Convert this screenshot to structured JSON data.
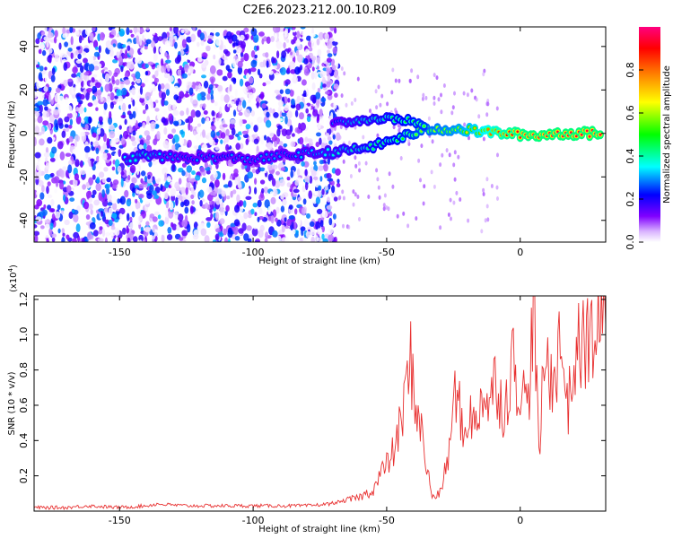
{
  "title": "C2E6.2023.212.00.10.R09",
  "chart_data": [
    {
      "type": "heatmap",
      "xlabel": "Height of straight line (km)",
      "ylabel": "Frequency (Hz)",
      "xlim": [
        -182,
        32
      ],
      "ylim": [
        -50,
        49
      ],
      "x_ticks": [
        "-150",
        "-100",
        "-50",
        "0"
      ],
      "x_tick_values": [
        -150,
        -100,
        -50,
        0
      ],
      "y_ticks": [
        "-40",
        "-20",
        "0",
        "20",
        "40"
      ],
      "y_tick_values": [
        -40,
        -20,
        0,
        20,
        40
      ],
      "colorbar": {
        "label": "Normalized spectral amplitude",
        "range": [
          0,
          1
        ],
        "ticks": [
          "0.0",
          "0.2",
          "0.4",
          "0.6",
          "0.8"
        ],
        "tick_values": [
          0.0,
          0.2,
          0.4,
          0.6,
          0.8
        ],
        "colors": [
          "#ffffff",
          "#d9b3ff",
          "#8000ff",
          "#0000ff",
          "#00ffff",
          "#00ff00",
          "#ffff00",
          "#ff8000",
          "#ff0000",
          "#ff0080"
        ]
      },
      "noise_region_x": [
        -182,
        -68
      ],
      "signal_track": [
        {
          "x": -148,
          "y": -12,
          "amp": 0.35
        },
        {
          "x": -140,
          "y": -10,
          "amp": 0.4
        },
        {
          "x": -132,
          "y": -11,
          "amp": 0.3
        },
        {
          "x": -120,
          "y": -11,
          "amp": 0.3
        },
        {
          "x": -110,
          "y": -11,
          "amp": 0.3
        },
        {
          "x": -100,
          "y": -12,
          "amp": 0.3
        },
        {
          "x": -88,
          "y": -10,
          "amp": 0.3
        },
        {
          "x": -75,
          "y": -9,
          "amp": 0.35
        },
        {
          "x": -65,
          "y": -8,
          "amp": 0.4
        },
        {
          "x": -55,
          "y": -6,
          "amp": 0.45
        },
        {
          "x": -45,
          "y": -2,
          "amp": 0.5
        },
        {
          "x": -35,
          "y": 2,
          "amp": 0.6
        },
        {
          "x": -25,
          "y": 2,
          "amp": 0.65
        },
        {
          "x": -15,
          "y": 1,
          "amp": 0.75
        },
        {
          "x": -5,
          "y": 0,
          "amp": 0.9
        },
        {
          "x": 5,
          "y": -1,
          "amp": 0.95
        },
        {
          "x": 15,
          "y": 0,
          "amp": 0.95
        },
        {
          "x": 25,
          "y": 0,
          "amp": 0.95
        },
        {
          "x": 31,
          "y": 0,
          "amp": 0.95
        }
      ],
      "upper_branch": [
        {
          "x": -70,
          "y": 5,
          "amp": 0.3
        },
        {
          "x": -60,
          "y": 6,
          "amp": 0.4
        },
        {
          "x": -50,
          "y": 7,
          "amp": 0.45
        },
        {
          "x": -42,
          "y": 6,
          "amp": 0.5
        },
        {
          "x": -35,
          "y": 3,
          "amp": 0.55
        }
      ]
    },
    {
      "type": "line",
      "xlabel": "Height of straight line (km)",
      "ylabel": "SNR (10 * v/v)",
      "y_multiplier": "(x10",
      "y_multiplier_exp": "4",
      "y_multiplier_close": ")",
      "xlim": [
        -182,
        32
      ],
      "ylim": [
        0,
        1.22
      ],
      "x_ticks": [
        "-150",
        "-100",
        "-50",
        "0"
      ],
      "x_tick_values": [
        -150,
        -100,
        -50,
        0
      ],
      "y_ticks": [
        "0.2",
        "0.4",
        "0.6",
        "0.8",
        "1.0",
        "1.2"
      ],
      "y_tick_values": [
        0.2,
        0.4,
        0.6,
        0.8,
        1.0,
        1.2
      ],
      "line_color": "#e83030",
      "series": [
        {
          "x": [
            -182,
            -170,
            -162,
            -150,
            -140,
            -136,
            -125,
            -110,
            -95,
            -80,
            -72,
            -65,
            -60,
            -55,
            -52,
            -50,
            -47,
            -44,
            -41,
            -39,
            -37,
            -35,
            -33,
            -30,
            -27,
            -24,
            -21,
            -19,
            -17,
            -14,
            -12,
            -9,
            -6,
            -3,
            0,
            3,
            5,
            7,
            9,
            12,
            15,
            18,
            21,
            24,
            28,
            32
          ],
          "y": [
            0.02,
            0.02,
            0.03,
            0.02,
            0.03,
            0.04,
            0.03,
            0.03,
            0.03,
            0.03,
            0.04,
            0.06,
            0.08,
            0.12,
            0.22,
            0.26,
            0.35,
            0.55,
            0.85,
            0.6,
            0.45,
            0.25,
            0.08,
            0.1,
            0.3,
            0.7,
            0.4,
            0.6,
            0.45,
            0.7,
            0.6,
            0.75,
            0.55,
            0.85,
            0.7,
            0.6,
            1.22,
            0.3,
            0.85,
            0.75,
            0.95,
            0.6,
            0.9,
            0.95,
            1.0,
            1.05
          ]
        }
      ]
    }
  ]
}
